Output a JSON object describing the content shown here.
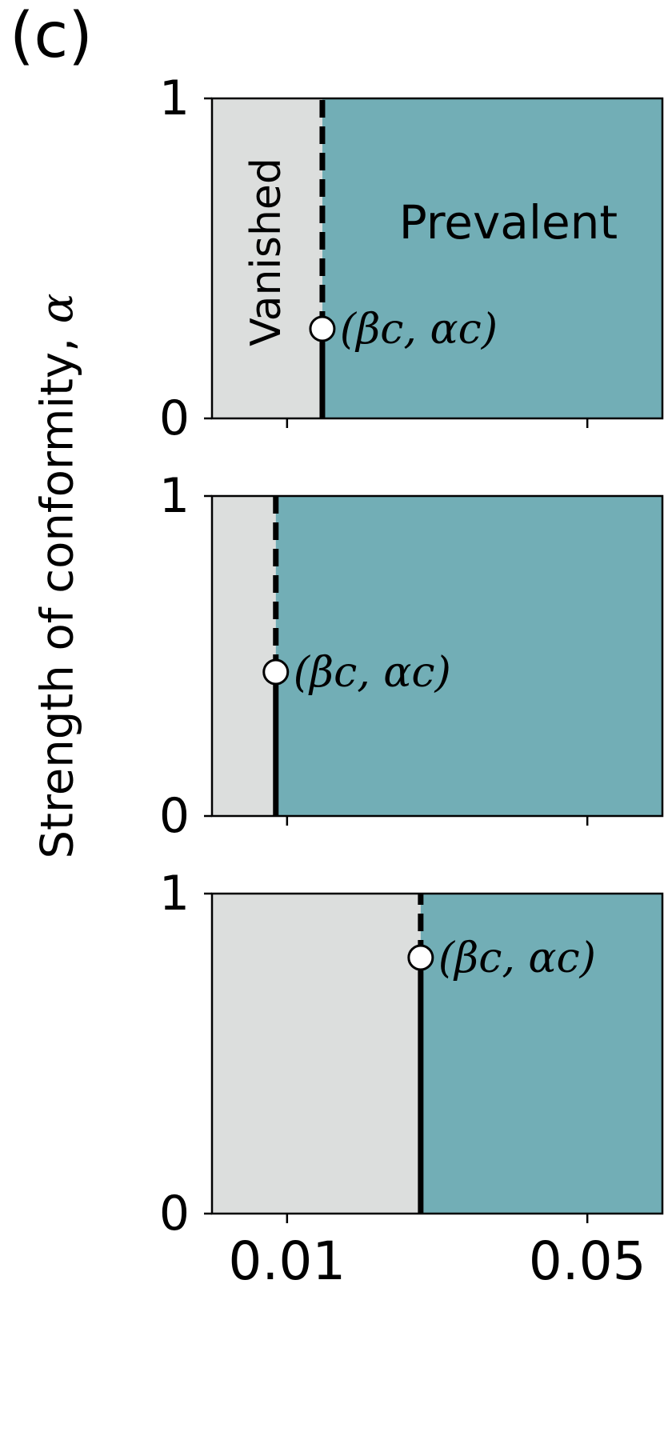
{
  "panel_label": "(c)",
  "colors": {
    "vanished": "#dcdedd",
    "prevalent": "#72aeb6",
    "line": "#000000",
    "marker_fill": "#ffffff"
  },
  "chart_data": {
    "type": "area",
    "ylabel_text": "Strength of conformity, ",
    "ylabel_symbol": "α",
    "x_ticks": [
      0.01,
      0.05
    ],
    "x_tick_labels": [
      "0.01",
      "0.05"
    ],
    "y_ticks": [
      0,
      1
    ],
    "y_tick_labels": [
      "0",
      "1"
    ],
    "xlim": [
      0.0,
      0.06
    ],
    "ylim": [
      0,
      1
    ],
    "grid": false,
    "regions": {
      "left": "Vanished",
      "right": "Prevalent"
    },
    "critical_point_label": "(βc, αc)",
    "panels": [
      {
        "beta_c": 0.0147,
        "alpha_c": 0.28,
        "show_region_labels": true,
        "show_x_tick_labels": false
      },
      {
        "beta_c": 0.0085,
        "alpha_c": 0.45,
        "show_region_labels": false,
        "show_x_tick_labels": false
      },
      {
        "beta_c": 0.0278,
        "alpha_c": 0.8,
        "show_region_labels": false,
        "show_x_tick_labels": true
      }
    ]
  }
}
